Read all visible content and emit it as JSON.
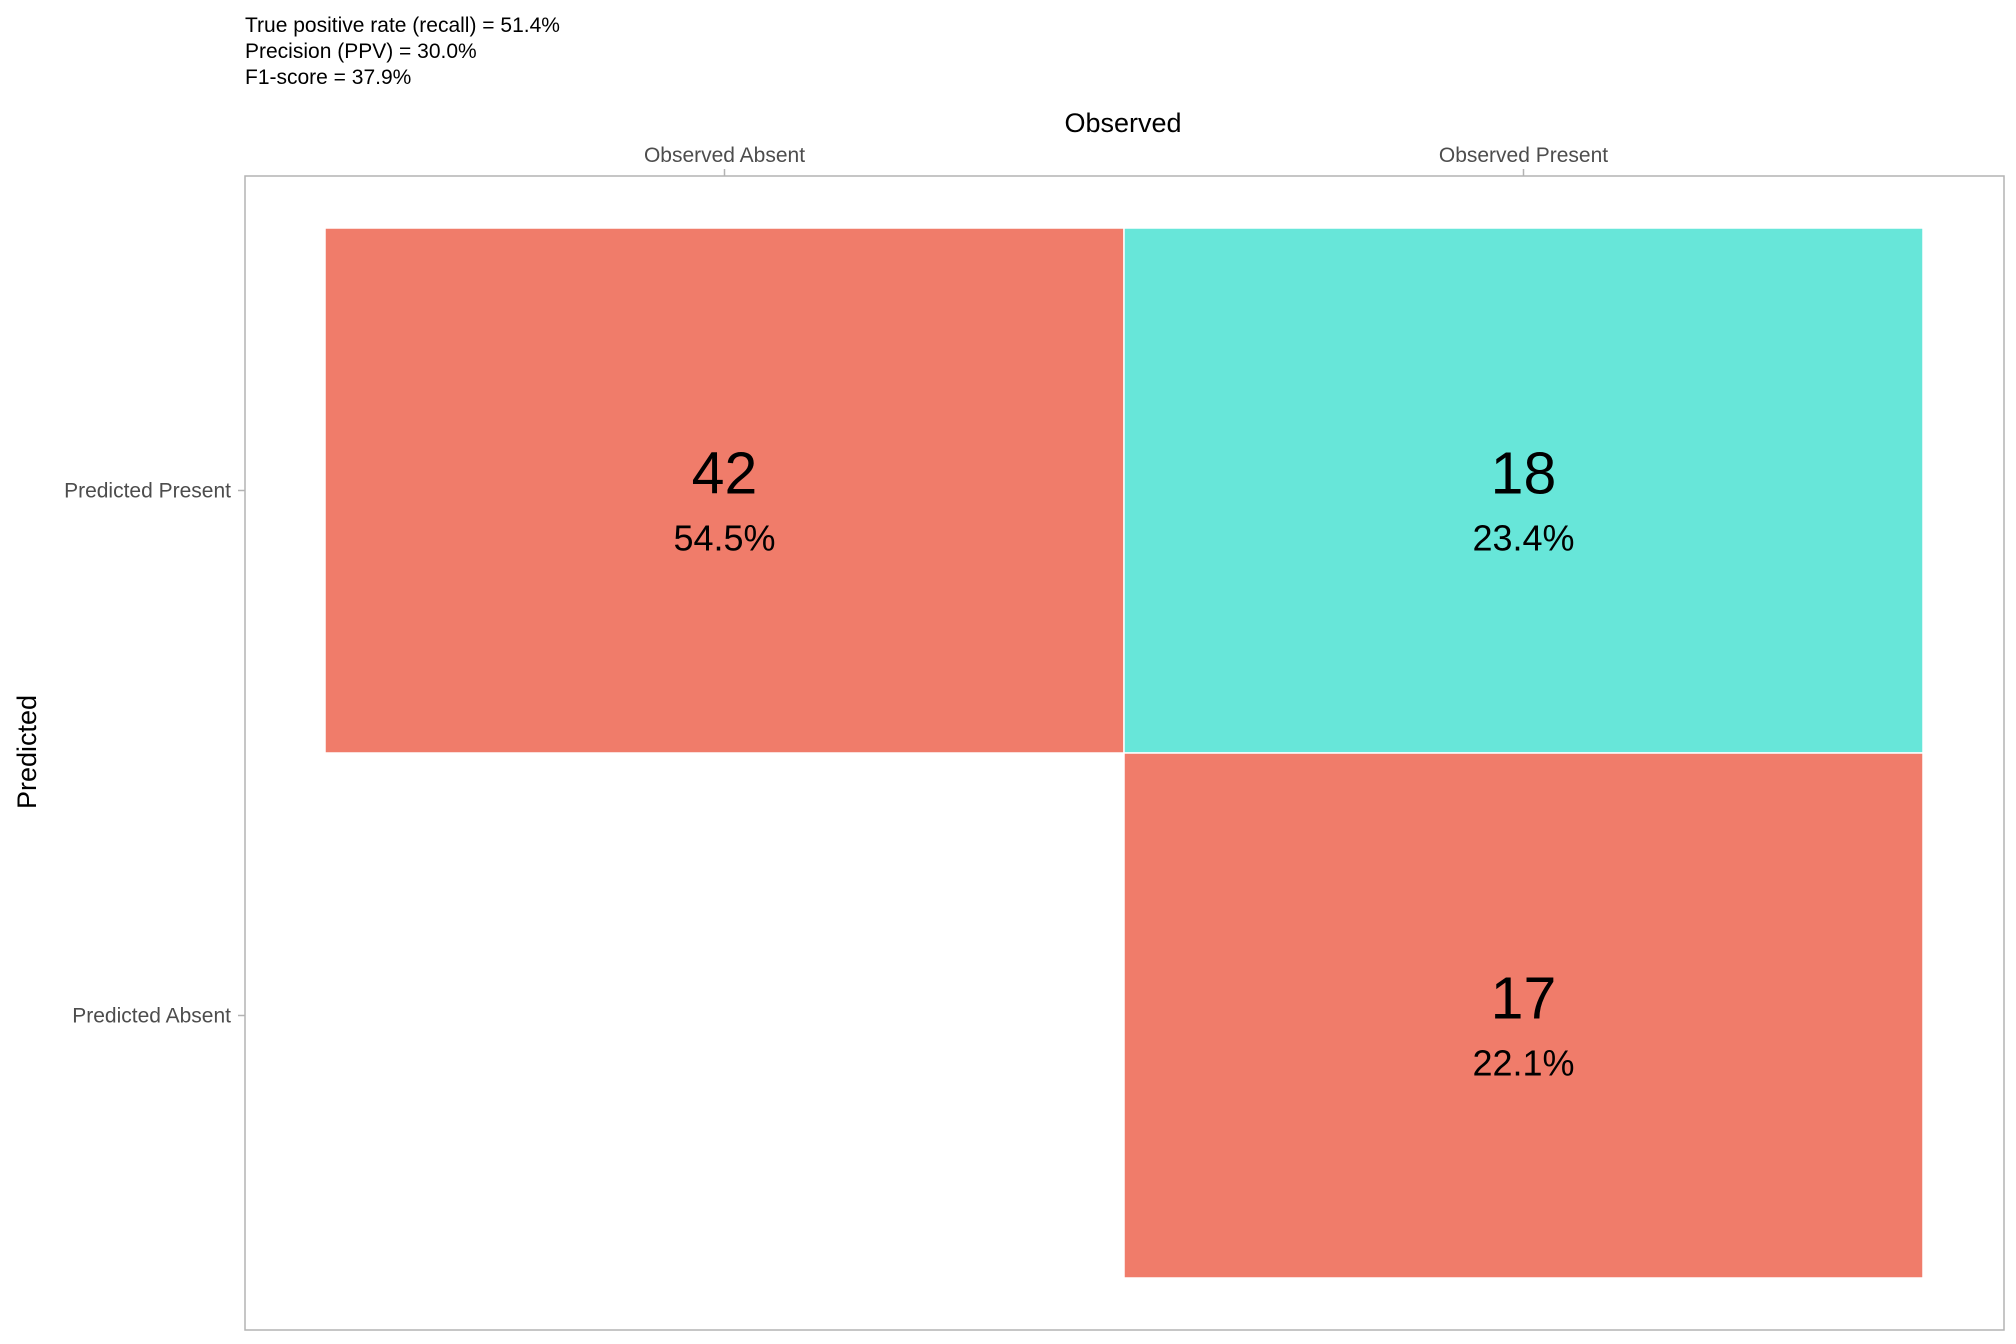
{
  "chart_data": {
    "type": "heatmap",
    "subtitle_lines": [
      "True positive rate (recall) = 51.4%",
      "Precision (PPV) = 30.0%",
      "F1-score = 37.9%"
    ],
    "xlabel": "Observed",
    "ylabel": "Predicted",
    "x_categories": [
      "Observed Absent",
      "Observed Present"
    ],
    "y_categories": [
      "Predicted Present",
      "Predicted Absent"
    ],
    "x_axis_position": "top",
    "grid": false,
    "legend": "none",
    "cells": [
      {
        "x": "Observed Absent",
        "y": "Predicted Present",
        "count": "42",
        "percent": "54.5%",
        "correct": false
      },
      {
        "x": "Observed Present",
        "y": "Predicted Present",
        "count": "18",
        "percent": "23.4%",
        "correct": true
      },
      {
        "x": "Observed Present",
        "y": "Predicted Absent",
        "count": "17",
        "percent": "22.1%",
        "correct": false
      }
    ],
    "colors": {
      "incorrect": "#f07c6a",
      "correct": "#67e6d9",
      "panel_border": "#b3b3b3",
      "tick": "#b3b3b3"
    }
  }
}
